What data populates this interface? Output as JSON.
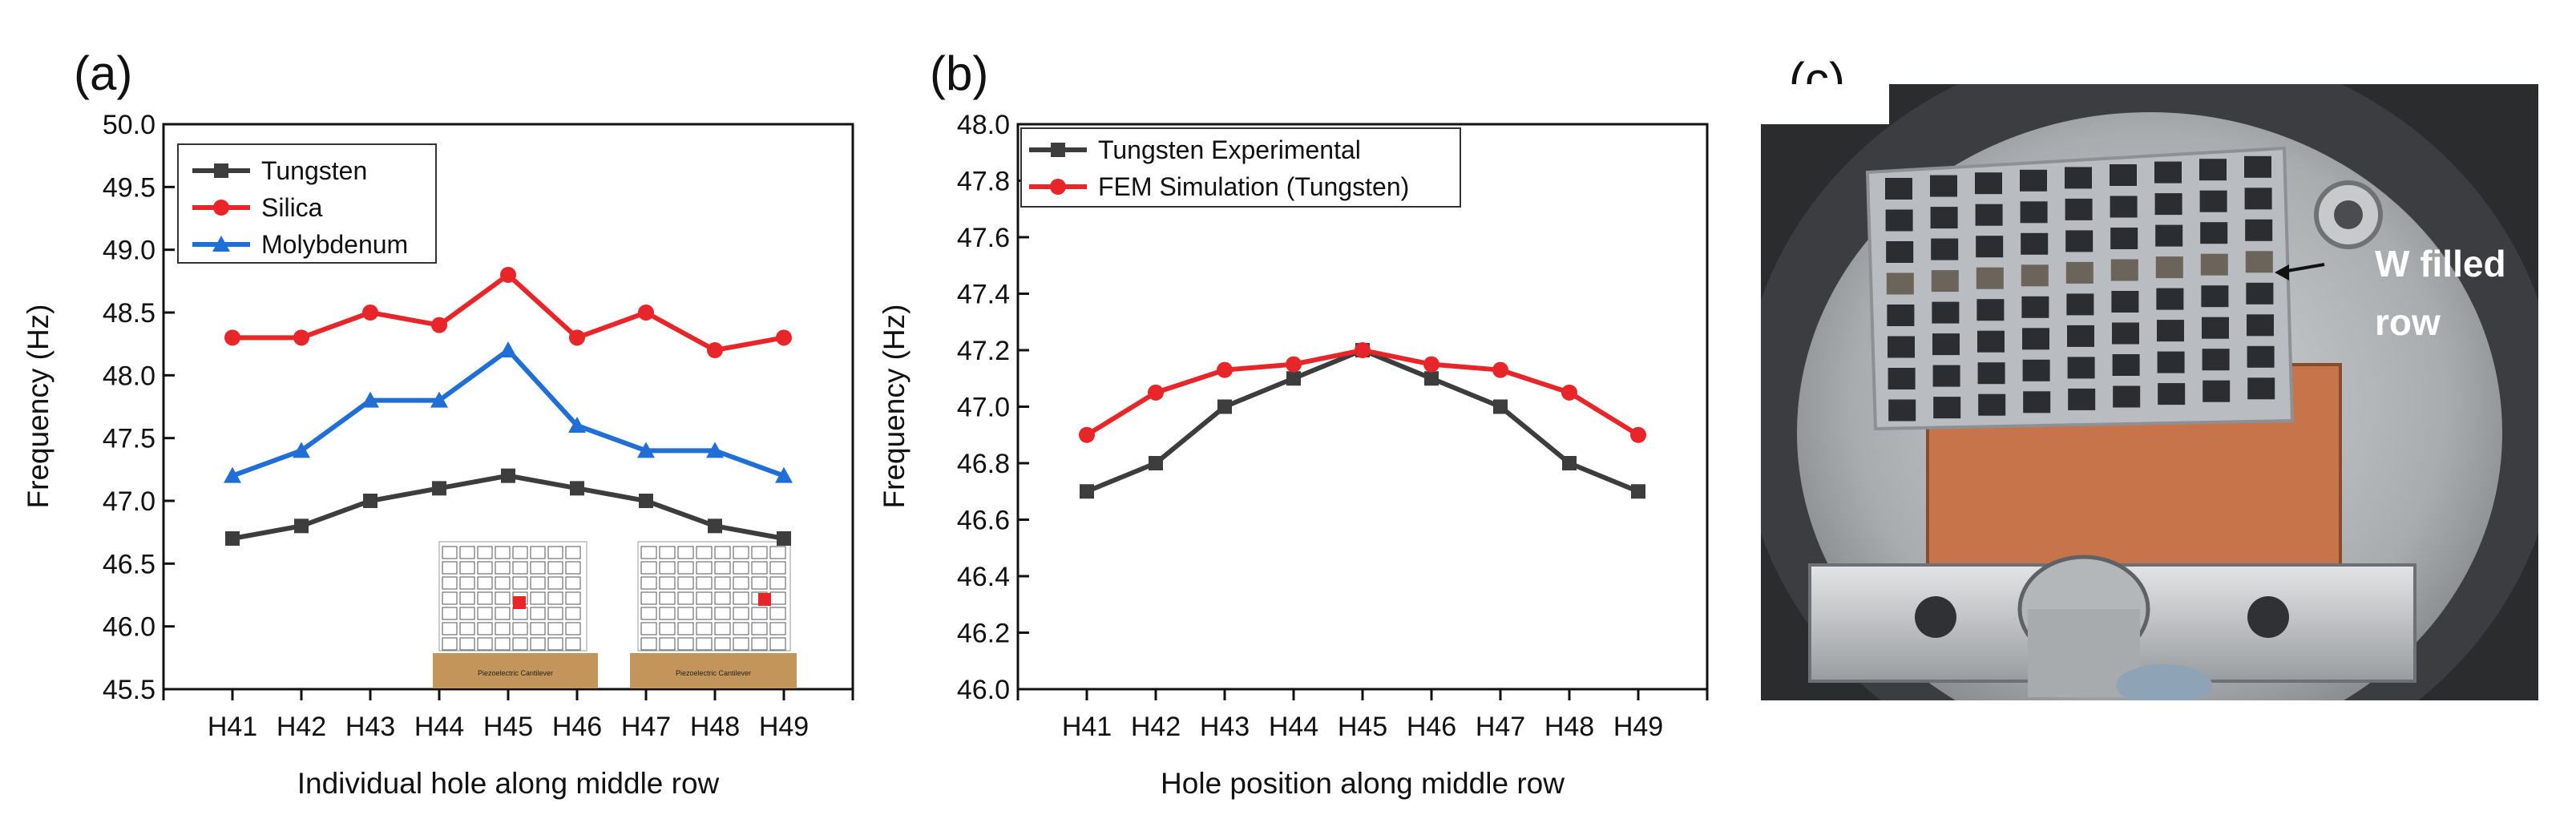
{
  "panel_labels": {
    "a": "(a)",
    "b": "(b)",
    "c": "(c)"
  },
  "colors": {
    "tungsten": "#3d3d3d",
    "silica": "#e8262a",
    "molybdenum": "#1f6fd6",
    "fem": "#e8262a"
  },
  "chart_data": [
    {
      "type": "line",
      "panel": "(a)",
      "xlabel": "Individual hole along middle row",
      "ylabel": "Frequency (Hz)",
      "categories": [
        "H41",
        "H42",
        "H43",
        "H44",
        "H45",
        "H46",
        "H47",
        "H48",
        "H49"
      ],
      "ylim": [
        45.5,
        50.0
      ],
      "yticks": [
        "45.5",
        "46.0",
        "46.5",
        "47.0",
        "47.5",
        "48.0",
        "48.5",
        "49.0",
        "49.5",
        "50.0"
      ],
      "legend_position": "top-left",
      "series": [
        {
          "name": "Tungsten",
          "marker": "square",
          "color": "#3d3d3d",
          "values": [
            46.7,
            46.8,
            47.0,
            47.1,
            47.2,
            47.1,
            47.0,
            46.8,
            46.7
          ]
        },
        {
          "name": "Silica",
          "marker": "circle",
          "color": "#e8262a",
          "values": [
            48.3,
            48.3,
            48.5,
            48.4,
            48.8,
            48.3,
            48.5,
            48.2,
            48.3
          ]
        },
        {
          "name": "Molybdenum",
          "marker": "triangle",
          "color": "#1f6fd6",
          "values": [
            47.2,
            47.4,
            47.8,
            47.8,
            48.2,
            47.6,
            47.4,
            47.4,
            47.2
          ]
        }
      ],
      "inset_labels": [
        "Piezoelectric Cantilever",
        "Piezoelectric Cantilever"
      ]
    },
    {
      "type": "line",
      "panel": "(b)",
      "xlabel": "Hole position along middle row",
      "ylabel": "Frequency (Hz)",
      "categories": [
        "H41",
        "H42",
        "H43",
        "H44",
        "H45",
        "H46",
        "H47",
        "H48",
        "H49"
      ],
      "ylim": [
        46.0,
        48.0
      ],
      "yticks": [
        "46.0",
        "46.2",
        "46.4",
        "46.6",
        "46.8",
        "47.0",
        "47.2",
        "47.4",
        "47.6",
        "47.8",
        "48.0"
      ],
      "legend_position": "top-left",
      "series": [
        {
          "name": "Tungsten Experimental",
          "marker": "square",
          "color": "#3d3d3d",
          "values": [
            46.7,
            46.8,
            47.0,
            47.1,
            47.2,
            47.1,
            47.0,
            46.8,
            46.7
          ]
        },
        {
          "name": "FEM Simulation (Tungsten)",
          "marker": "circle",
          "color": "#e8262a",
          "values": [
            46.9,
            47.05,
            47.13,
            47.15,
            47.2,
            47.15,
            47.13,
            47.05,
            46.9
          ]
        }
      ]
    }
  ],
  "photo": {
    "annotation_line1": "W filled",
    "annotation_line2": "row"
  }
}
